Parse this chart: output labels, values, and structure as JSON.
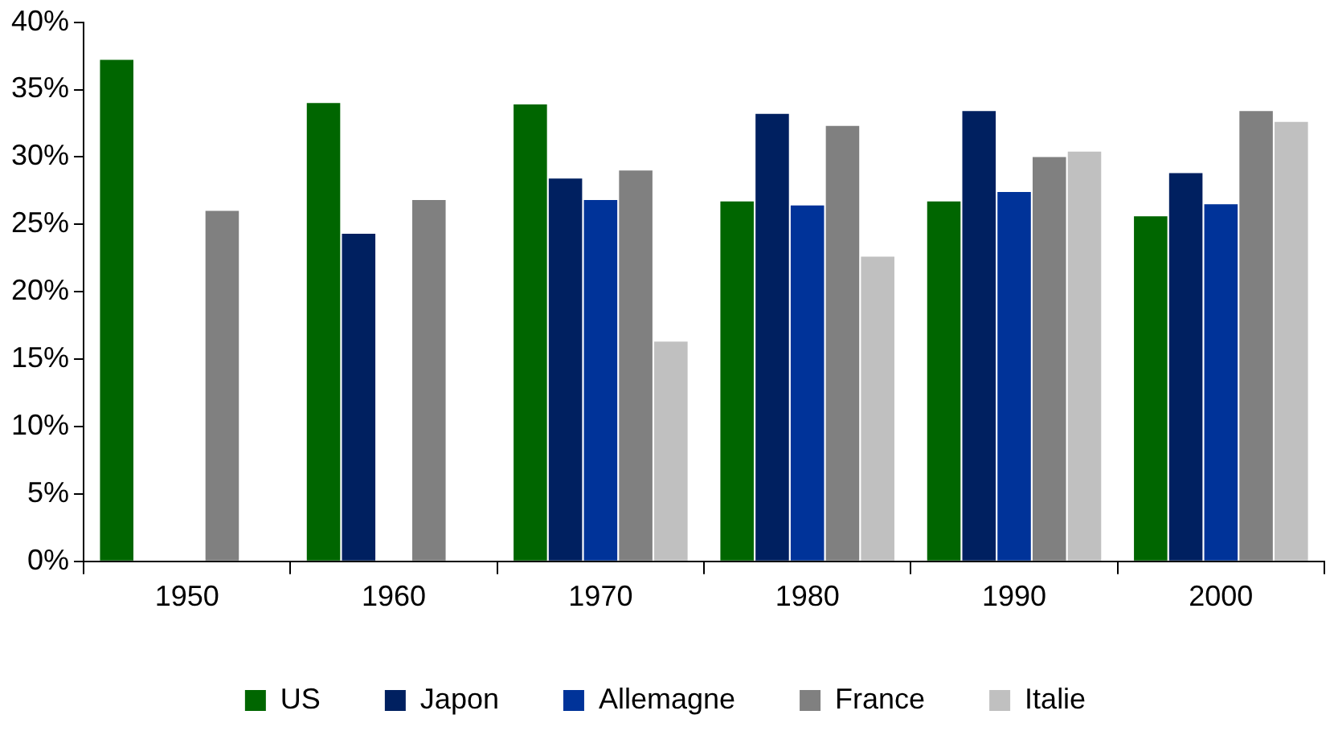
{
  "chart_data": {
    "type": "bar",
    "categories": [
      "1950",
      "1960",
      "1970",
      "1980",
      "1990",
      "2000"
    ],
    "series": [
      {
        "name": "US",
        "color": "#006600",
        "values": [
          37.2,
          34.0,
          33.9,
          26.7,
          26.7,
          25.6
        ]
      },
      {
        "name": "Japon",
        "color": "#002060",
        "values": [
          null,
          24.3,
          28.4,
          33.2,
          33.4,
          28.8
        ]
      },
      {
        "name": "Allemagne",
        "color": "#003399",
        "values": [
          null,
          null,
          26.8,
          26.4,
          27.4,
          26.5
        ]
      },
      {
        "name": "France",
        "color": "#808080",
        "values": [
          26.0,
          26.8,
          29.0,
          32.3,
          30.0,
          33.4
        ]
      },
      {
        "name": "Italie",
        "color": "#c0c0c0",
        "values": [
          null,
          null,
          16.3,
          22.6,
          30.4,
          32.6
        ]
      }
    ],
    "ylim": [
      0,
      40
    ],
    "yticks": [
      {
        "value": 0,
        "label": "0%"
      },
      {
        "value": 5,
        "label": "5%"
      },
      {
        "value": 10,
        "label": "10%"
      },
      {
        "value": 15,
        "label": "15%"
      },
      {
        "value": 20,
        "label": "20%"
      },
      {
        "value": 25,
        "label": "25%"
      },
      {
        "value": 30,
        "label": "30%"
      },
      {
        "value": 35,
        "label": "35%"
      },
      {
        "value": 40,
        "label": "40%"
      }
    ],
    "grid": false,
    "legend": "bottom"
  }
}
